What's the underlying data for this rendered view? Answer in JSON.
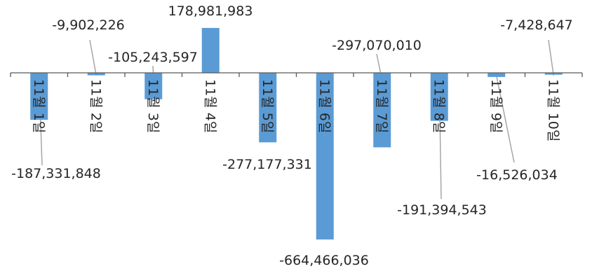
{
  "chart_data": {
    "type": "bar",
    "title": "",
    "xlabel": "",
    "ylabel": "",
    "bar_color": "#5b9bd5",
    "grid": false,
    "legend": "none",
    "categories": [
      "11월 1일",
      "11월 2일",
      "11월 3일",
      "11월 4일",
      "11월 5일",
      "11월 6일",
      "11월 7일",
      "11월 8일",
      "11월 9일",
      "11월 10일"
    ],
    "values": [
      -187331848,
      -9902226,
      -105243597,
      178981983,
      -277177331,
      -664466036,
      -297070010,
      -191394543,
      -16526034,
      -7428647
    ],
    "data_labels": [
      "-187,331,848",
      "-9,902,226",
      "-105,243,597",
      "178,981,983",
      "-277,177,331",
      "-664,466,036",
      "-297,070,010",
      "-191,394,543",
      "-16,526,034",
      "-7,428,647"
    ]
  }
}
